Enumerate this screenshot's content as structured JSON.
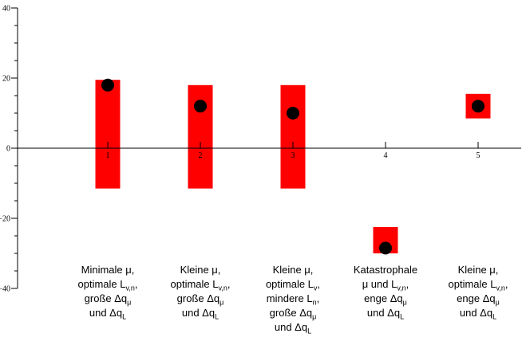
{
  "figure": {
    "background": "#ffffff",
    "axis_color": "#000000"
  },
  "chart_data": {
    "type": "bar",
    "subtype": "range-bar-with-median-point",
    "title": "",
    "xlabel": "",
    "ylabel": "",
    "grid": false,
    "legend": "none",
    "ylim": [
      -40,
      40
    ],
    "xlim": [
      0,
      5.45
    ],
    "bar_color": "#ff0000",
    "point_color": "#000000",
    "x": [
      1,
      2,
      3,
      4,
      5
    ],
    "xtick_labels": [
      "1",
      "2",
      "3",
      "4",
      "5"
    ],
    "yticks": [
      40,
      20,
      0,
      -20,
      -40
    ],
    "ytick_labels": [
      "40",
      "20",
      "0",
      "−20",
      "−40"
    ],
    "y_minor_tick_step": 5,
    "bar_width_units": 0.27,
    "series": [
      {
        "name": "range",
        "type": "bar",
        "low": [
          -11.5,
          -11.5,
          -11.5,
          -30.0,
          8.5
        ],
        "high": [
          19.5,
          18.0,
          18.0,
          -22.5,
          15.5
        ]
      },
      {
        "name": "median-point",
        "type": "scatter",
        "values": [
          18,
          12,
          10,
          -28.5,
          12
        ]
      }
    ],
    "categories": [
      {
        "x": 1,
        "lines": [
          "Minimale μ,",
          "optimale L_{v,n},",
          "große Δq_{μ}",
          "und Δq_{L}"
        ]
      },
      {
        "x": 2,
        "lines": [
          "Kleine μ,",
          "optimale L_{v,n},",
          "große Δq_{μ}",
          "und Δq_{L}"
        ]
      },
      {
        "x": 3,
        "lines": [
          "Kleine μ,",
          "optimale L_{v},",
          "mindere L_{n},",
          "große Δq_{μ}",
          "und Δq_{L}"
        ]
      },
      {
        "x": 4,
        "lines": [
          "Katastrophale",
          "μ und L_{v,n},",
          "enge Δq_{μ}",
          "und Δq_{L}"
        ]
      },
      {
        "x": 5,
        "lines": [
          "Kleine μ,",
          "optimale L_{v,n},",
          "enge Δq_{μ}",
          "und Δq_{L}"
        ]
      }
    ]
  }
}
